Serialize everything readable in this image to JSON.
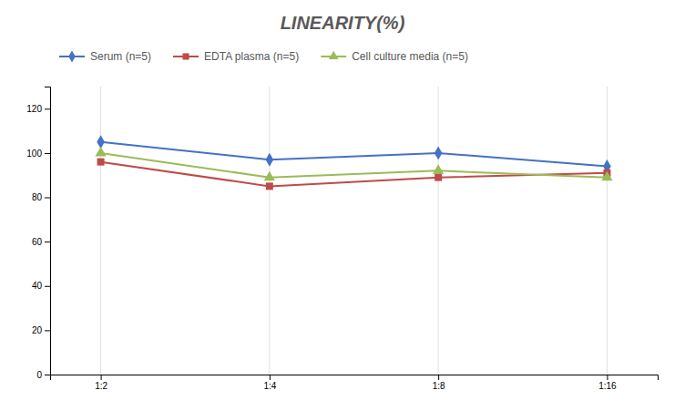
{
  "chart_data": {
    "type": "line",
    "title": "LINEARITY(%)",
    "categories": [
      "1:2",
      "1:4",
      "1:8",
      "1:16"
    ],
    "series": [
      {
        "name": "Serum (n=5)",
        "color": "#4472C4",
        "marker": "diamond",
        "values": [
          105,
          97,
          100,
          94
        ]
      },
      {
        "name": "EDTA plasma (n=5)",
        "color": "#BE4B48",
        "marker": "square",
        "values": [
          96,
          85,
          89,
          91
        ]
      },
      {
        "name": "Cell culture media (n=5)",
        "color": "#9BBB59",
        "marker": "triangle",
        "values": [
          100,
          89,
          92,
          89
        ]
      }
    ],
    "ylim": [
      0,
      130
    ],
    "yticks": [
      0,
      20,
      40,
      60,
      80,
      100,
      120
    ],
    "grid": true,
    "legend": "top"
  }
}
